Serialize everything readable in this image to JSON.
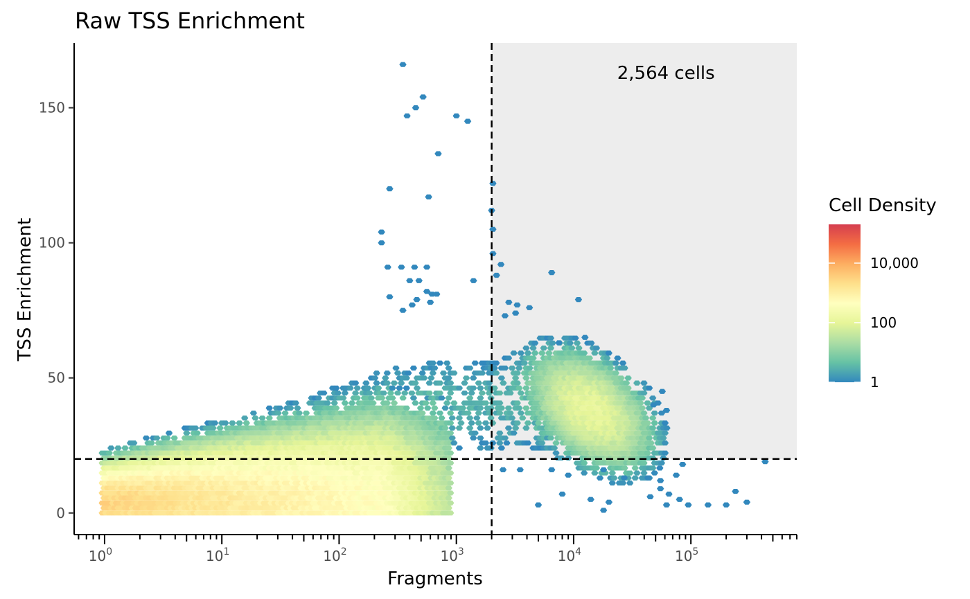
{
  "chart_data": {
    "type": "heatmap",
    "subtype": "hexbin",
    "title": "Raw TSS Enrichment",
    "xlabel": "Fragments",
    "ylabel": "TSS Enrichment",
    "x_scale": "log10",
    "xlim": [
      0.55,
      800000
    ],
    "ylim": [
      -8,
      174
    ],
    "x_ticks": [
      {
        "value": 1,
        "base": "10",
        "exp": "0"
      },
      {
        "value": 10,
        "base": "10",
        "exp": "1"
      },
      {
        "value": 100,
        "base": "10",
        "exp": "2"
      },
      {
        "value": 1000,
        "base": "10",
        "exp": "3"
      },
      {
        "value": 10000,
        "base": "10",
        "exp": "4"
      },
      {
        "value": 100000,
        "base": "10",
        "exp": "5"
      }
    ],
    "y_ticks": [
      {
        "value": 0,
        "label": "0"
      },
      {
        "value": 50,
        "label": "50"
      },
      {
        "value": 100,
        "label": "100"
      },
      {
        "value": 150,
        "label": "150"
      }
    ],
    "thresholds": {
      "x": 2000,
      "y": 20
    },
    "pass_region": {
      "x_min": 2000,
      "y_min": 20,
      "fill": "#ededed"
    },
    "annotation": {
      "text": "2,564 cells",
      "x": 160000,
      "y": 163
    },
    "legend": {
      "title": "Cell Density",
      "position": "right",
      "scale": "log10",
      "labels": [
        {
          "value": 1,
          "label": "1"
        },
        {
          "value": 100,
          "label": "100"
        },
        {
          "value": 10000,
          "label": "10,000"
        }
      ],
      "max": 200000,
      "colors": [
        "#3288bd",
        "#66c2a5",
        "#abdda4",
        "#e6f598",
        "#ffffbf",
        "#fee08b",
        "#fdae61",
        "#f46d43",
        "#d53e4f"
      ]
    },
    "clusters": [
      {
        "name": "low-fragment band",
        "x_range": [
          1,
          700
        ],
        "y_range": [
          0,
          20
        ],
        "peak_density": 3000
      },
      {
        "name": "high-fragment cluster",
        "x_center": 14000,
        "y_center": 38,
        "peak_density": 100
      }
    ],
    "outliers": [
      [
        350,
        166
      ],
      [
        520,
        154
      ],
      [
        450,
        150
      ],
      [
        380,
        147
      ],
      [
        1000,
        147
      ],
      [
        1250,
        145
      ],
      [
        700,
        133
      ],
      [
        270,
        120
      ],
      [
        580,
        117
      ],
      [
        2050,
        122
      ],
      [
        2000,
        112
      ],
      [
        2050,
        105
      ],
      [
        230,
        104
      ],
      [
        230,
        100
      ],
      [
        2050,
        96
      ],
      [
        260,
        91
      ],
      [
        340,
        91
      ],
      [
        440,
        91
      ],
      [
        560,
        91
      ],
      [
        2400,
        92
      ],
      [
        2200,
        88
      ],
      [
        6500,
        89
      ],
      [
        400,
        86
      ],
      [
        480,
        86
      ],
      [
        1400,
        86
      ],
      [
        560,
        82
      ],
      [
        620,
        81
      ],
      [
        680,
        81
      ],
      [
        600,
        78
      ],
      [
        11000,
        79
      ],
      [
        270,
        80
      ],
      [
        420,
        77
      ],
      [
        460,
        79
      ],
      [
        350,
        75
      ],
      [
        2800,
        78
      ],
      [
        3300,
        77
      ],
      [
        2600,
        73
      ],
      [
        3200,
        74
      ],
      [
        4200,
        76
      ],
      [
        7500,
        63
      ],
      [
        12500,
        65
      ],
      [
        48000,
        40
      ],
      [
        57000,
        45
      ],
      [
        62000,
        38
      ],
      [
        2500,
        16
      ],
      [
        3500,
        16
      ],
      [
        6500,
        16
      ],
      [
        9000,
        14
      ],
      [
        18000,
        16
      ],
      [
        27000,
        13
      ],
      [
        43000,
        13
      ],
      [
        55000,
        12
      ],
      [
        85000,
        18
      ],
      [
        75000,
        14
      ],
      [
        55000,
        9
      ],
      [
        65000,
        7
      ],
      [
        80000,
        5
      ],
      [
        62000,
        3
      ],
      [
        95000,
        3
      ],
      [
        140000,
        3
      ],
      [
        200000,
        3
      ],
      [
        240000,
        8
      ],
      [
        430000,
        19
      ],
      [
        5000,
        3
      ],
      [
        8000,
        7
      ],
      [
        14000,
        5
      ],
      [
        45000,
        6
      ],
      [
        18000,
        1
      ],
      [
        20000,
        4
      ],
      [
        300000,
        4
      ]
    ]
  }
}
